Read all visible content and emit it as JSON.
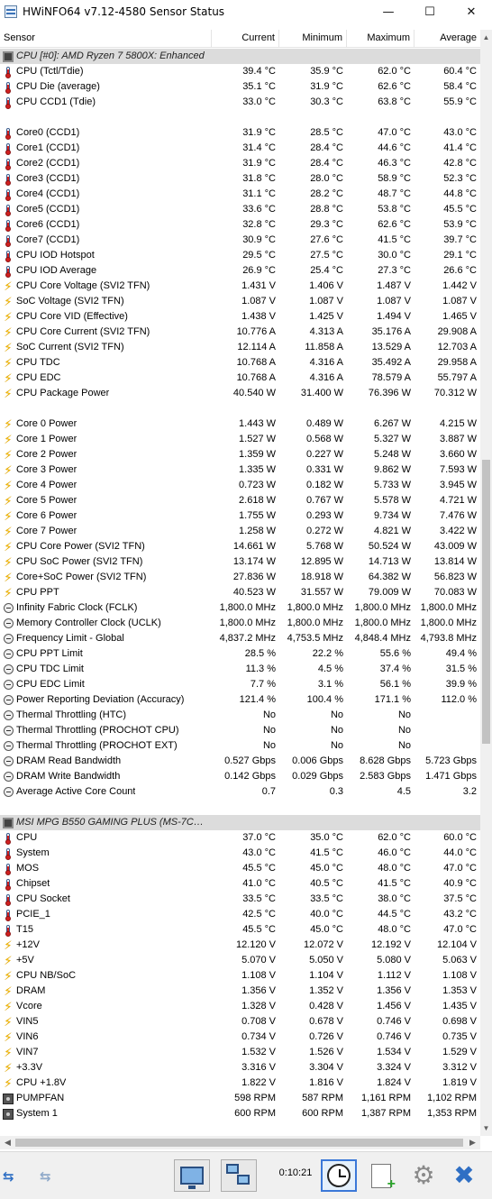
{
  "window": {
    "title": "HWiNFO64 v7.12-4580 Sensor Status",
    "minimize": "—",
    "maximize": "☐",
    "close": "✕"
  },
  "columns": {
    "sensor": "Sensor",
    "current": "Current",
    "minimum": "Minimum",
    "maximum": "Maximum",
    "average": "Average"
  },
  "rows": [
    {
      "type": "group",
      "icon": "chip",
      "name": "CPU [#0]: AMD Ryzen 7 5800X: Enhanced",
      "cur": "",
      "min": "",
      "max": "",
      "avg": ""
    },
    {
      "icon": "temp",
      "name": "CPU (Tctl/Tdie)",
      "cur": "39.4 °C",
      "min": "35.9 °C",
      "max": "62.0 °C",
      "avg": "60.4 °C"
    },
    {
      "icon": "temp",
      "name": "CPU Die (average)",
      "cur": "35.1 °C",
      "min": "31.9 °C",
      "max": "62.6 °C",
      "avg": "58.4 °C"
    },
    {
      "icon": "temp",
      "name": "CPU CCD1 (Tdie)",
      "cur": "33.0 °C",
      "min": "30.3 °C",
      "max": "63.8 °C",
      "avg": "55.9 °C"
    },
    {
      "type": "blank"
    },
    {
      "icon": "temp",
      "name": "Core0 (CCD1)",
      "cur": "31.9 °C",
      "min": "28.5 °C",
      "max": "47.0 °C",
      "avg": "43.0 °C"
    },
    {
      "icon": "temp",
      "name": "Core1 (CCD1)",
      "cur": "31.4 °C",
      "min": "28.4 °C",
      "max": "44.6 °C",
      "avg": "41.4 °C"
    },
    {
      "icon": "temp",
      "name": "Core2 (CCD1)",
      "cur": "31.9 °C",
      "min": "28.4 °C",
      "max": "46.3 °C",
      "avg": "42.8 °C"
    },
    {
      "icon": "temp",
      "name": "Core3 (CCD1)",
      "cur": "31.8 °C",
      "min": "28.0 °C",
      "max": "58.9 °C",
      "avg": "52.3 °C"
    },
    {
      "icon": "temp",
      "name": "Core4 (CCD1)",
      "cur": "31.1 °C",
      "min": "28.2 °C",
      "max": "48.7 °C",
      "avg": "44.8 °C"
    },
    {
      "icon": "temp",
      "name": "Core5 (CCD1)",
      "cur": "33.6 °C",
      "min": "28.8 °C",
      "max": "53.8 °C",
      "avg": "45.5 °C"
    },
    {
      "icon": "temp",
      "name": "Core6 (CCD1)",
      "cur": "32.8 °C",
      "min": "29.3 °C",
      "max": "62.6 °C",
      "avg": "53.9 °C"
    },
    {
      "icon": "temp",
      "name": "Core7 (CCD1)",
      "cur": "30.9 °C",
      "min": "27.6 °C",
      "max": "41.5 °C",
      "avg": "39.7 °C"
    },
    {
      "icon": "temp",
      "name": "CPU IOD Hotspot",
      "cur": "29.5 °C",
      "min": "27.5 °C",
      "max": "30.0 °C",
      "avg": "29.1 °C"
    },
    {
      "icon": "temp",
      "name": "CPU IOD Average",
      "cur": "26.9 °C",
      "min": "25.4 °C",
      "max": "27.3 °C",
      "avg": "26.6 °C"
    },
    {
      "icon": "bolt",
      "name": "CPU Core Voltage (SVI2 TFN)",
      "cur": "1.431 V",
      "min": "1.406 V",
      "max": "1.487 V",
      "avg": "1.442 V"
    },
    {
      "icon": "bolt",
      "name": "SoC Voltage (SVI2 TFN)",
      "cur": "1.087 V",
      "min": "1.087 V",
      "max": "1.087 V",
      "avg": "1.087 V"
    },
    {
      "icon": "bolt",
      "name": "CPU Core VID (Effective)",
      "cur": "1.438 V",
      "min": "1.425 V",
      "max": "1.494 V",
      "avg": "1.465 V"
    },
    {
      "icon": "bolt",
      "name": "CPU Core Current (SVI2 TFN)",
      "cur": "10.776 A",
      "min": "4.313 A",
      "max": "35.176 A",
      "avg": "29.908 A"
    },
    {
      "icon": "bolt",
      "name": "SoC Current (SVI2 TFN)",
      "cur": "12.114 A",
      "min": "11.858 A",
      "max": "13.529 A",
      "avg": "12.703 A"
    },
    {
      "icon": "bolt",
      "name": "CPU TDC",
      "cur": "10.768 A",
      "min": "4.316 A",
      "max": "35.492 A",
      "avg": "29.958 A"
    },
    {
      "icon": "bolt",
      "name": "CPU EDC",
      "cur": "10.768 A",
      "min": "4.316 A",
      "max": "78.579 A",
      "avg": "55.797 A"
    },
    {
      "icon": "bolt",
      "name": "CPU Package Power",
      "cur": "40.540 W",
      "min": "31.400 W",
      "max": "76.396 W",
      "avg": "70.312 W"
    },
    {
      "type": "blank"
    },
    {
      "icon": "bolt",
      "name": "Core 0 Power",
      "cur": "1.443 W",
      "min": "0.489 W",
      "max": "6.267 W",
      "avg": "4.215 W"
    },
    {
      "icon": "bolt",
      "name": "Core 1 Power",
      "cur": "1.527 W",
      "min": "0.568 W",
      "max": "5.327 W",
      "avg": "3.887 W"
    },
    {
      "icon": "bolt",
      "name": "Core 2 Power",
      "cur": "1.359 W",
      "min": "0.227 W",
      "max": "5.248 W",
      "avg": "3.660 W"
    },
    {
      "icon": "bolt",
      "name": "Core 3 Power",
      "cur": "1.335 W",
      "min": "0.331 W",
      "max": "9.862 W",
      "avg": "7.593 W"
    },
    {
      "icon": "bolt",
      "name": "Core 4 Power",
      "cur": "0.723 W",
      "min": "0.182 W",
      "max": "5.733 W",
      "avg": "3.945 W"
    },
    {
      "icon": "bolt",
      "name": "Core 5 Power",
      "cur": "2.618 W",
      "min": "0.767 W",
      "max": "5.578 W",
      "avg": "4.721 W"
    },
    {
      "icon": "bolt",
      "name": "Core 6 Power",
      "cur": "1.755 W",
      "min": "0.293 W",
      "max": "9.734 W",
      "avg": "7.476 W"
    },
    {
      "icon": "bolt",
      "name": "Core 7 Power",
      "cur": "1.258 W",
      "min": "0.272 W",
      "max": "4.821 W",
      "avg": "3.422 W"
    },
    {
      "icon": "bolt",
      "name": "CPU Core Power (SVI2 TFN)",
      "cur": "14.661 W",
      "min": "5.768 W",
      "max": "50.524 W",
      "avg": "43.009 W"
    },
    {
      "icon": "bolt",
      "name": "CPU SoC Power (SVI2 TFN)",
      "cur": "13.174 W",
      "min": "12.895 W",
      "max": "14.713 W",
      "avg": "13.814 W"
    },
    {
      "icon": "bolt",
      "name": "Core+SoC Power (SVI2 TFN)",
      "cur": "27.836 W",
      "min": "18.918 W",
      "max": "64.382 W",
      "avg": "56.823 W"
    },
    {
      "icon": "bolt",
      "name": "CPU PPT",
      "cur": "40.523 W",
      "min": "31.557 W",
      "max": "79.009 W",
      "avg": "70.083 W"
    },
    {
      "icon": "clock",
      "name": "Infinity Fabric Clock (FCLK)",
      "cur": "1,800.0 MHz",
      "min": "1,800.0 MHz",
      "max": "1,800.0 MHz",
      "avg": "1,800.0 MHz"
    },
    {
      "icon": "clock",
      "name": "Memory Controller Clock (UCLK)",
      "cur": "1,800.0 MHz",
      "min": "1,800.0 MHz",
      "max": "1,800.0 MHz",
      "avg": "1,800.0 MHz"
    },
    {
      "icon": "clock",
      "name": "Frequency Limit - Global",
      "cur": "4,837.2 MHz",
      "min": "4,753.5 MHz",
      "max": "4,848.4 MHz",
      "avg": "4,793.8 MHz"
    },
    {
      "icon": "clock",
      "name": "CPU PPT Limit",
      "cur": "28.5 %",
      "min": "22.2 %",
      "max": "55.6 %",
      "avg": "49.4 %"
    },
    {
      "icon": "clock",
      "name": "CPU TDC Limit",
      "cur": "11.3 %",
      "min": "4.5 %",
      "max": "37.4 %",
      "avg": "31.5 %"
    },
    {
      "icon": "clock",
      "name": "CPU EDC Limit",
      "cur": "7.7 %",
      "min": "3.1 %",
      "max": "56.1 %",
      "avg": "39.9 %"
    },
    {
      "icon": "clock",
      "name": "Power Reporting Deviation (Accuracy)",
      "cur": "121.4 %",
      "min": "100.4 %",
      "max": "171.1 %",
      "avg": "112.0 %"
    },
    {
      "icon": "clock",
      "name": "Thermal Throttling (HTC)",
      "cur": "No",
      "min": "No",
      "max": "No",
      "avg": ""
    },
    {
      "icon": "clock",
      "name": "Thermal Throttling (PROCHOT CPU)",
      "cur": "No",
      "min": "No",
      "max": "No",
      "avg": ""
    },
    {
      "icon": "clock",
      "name": "Thermal Throttling (PROCHOT EXT)",
      "cur": "No",
      "min": "No",
      "max": "No",
      "avg": ""
    },
    {
      "icon": "clock",
      "name": "DRAM Read Bandwidth",
      "cur": "0.527 Gbps",
      "min": "0.006 Gbps",
      "max": "8.628 Gbps",
      "avg": "5.723 Gbps"
    },
    {
      "icon": "clock",
      "name": "DRAM Write Bandwidth",
      "cur": "0.142 Gbps",
      "min": "0.029 Gbps",
      "max": "2.583 Gbps",
      "avg": "1.471 Gbps"
    },
    {
      "icon": "clock",
      "name": "Average Active Core Count",
      "cur": "0.7",
      "min": "0.3",
      "max": "4.5",
      "avg": "3.2"
    },
    {
      "type": "blank"
    },
    {
      "type": "group",
      "icon": "chip",
      "name": "MSI MPG B550 GAMING PLUS (MS-7C56) (...",
      "cur": "",
      "min": "",
      "max": "",
      "avg": ""
    },
    {
      "icon": "temp",
      "name": "CPU",
      "cur": "37.0 °C",
      "min": "35.0 °C",
      "max": "62.0 °C",
      "avg": "60.0 °C"
    },
    {
      "icon": "temp",
      "name": "System",
      "cur": "43.0 °C",
      "min": "41.5 °C",
      "max": "46.0 °C",
      "avg": "44.0 °C"
    },
    {
      "icon": "temp",
      "name": "MOS",
      "cur": "45.5 °C",
      "min": "45.0 °C",
      "max": "48.0 °C",
      "avg": "47.0 °C"
    },
    {
      "icon": "temp",
      "name": "Chipset",
      "cur": "41.0 °C",
      "min": "40.5 °C",
      "max": "41.5 °C",
      "avg": "40.9 °C"
    },
    {
      "icon": "temp",
      "name": "CPU Socket",
      "cur": "33.5 °C",
      "min": "33.5 °C",
      "max": "38.0 °C",
      "avg": "37.5 °C"
    },
    {
      "icon": "temp",
      "name": "PCIE_1",
      "cur": "42.5 °C",
      "min": "40.0 °C",
      "max": "44.5 °C",
      "avg": "43.2 °C"
    },
    {
      "icon": "temp",
      "name": "T15",
      "cur": "45.5 °C",
      "min": "45.0 °C",
      "max": "48.0 °C",
      "avg": "47.0 °C"
    },
    {
      "icon": "bolt",
      "name": "+12V",
      "cur": "12.120 V",
      "min": "12.072 V",
      "max": "12.192 V",
      "avg": "12.104 V"
    },
    {
      "icon": "bolt",
      "name": "+5V",
      "cur": "5.070 V",
      "min": "5.050 V",
      "max": "5.080 V",
      "avg": "5.063 V"
    },
    {
      "icon": "bolt",
      "name": "CPU NB/SoC",
      "cur": "1.108 V",
      "min": "1.104 V",
      "max": "1.112 V",
      "avg": "1.108 V"
    },
    {
      "icon": "bolt",
      "name": "DRAM",
      "cur": "1.356 V",
      "min": "1.352 V",
      "max": "1.356 V",
      "avg": "1.353 V"
    },
    {
      "icon": "bolt",
      "name": "Vcore",
      "cur": "1.328 V",
      "min": "0.428 V",
      "max": "1.456 V",
      "avg": "1.435 V"
    },
    {
      "icon": "bolt",
      "name": "VIN5",
      "cur": "0.708 V",
      "min": "0.678 V",
      "max": "0.746 V",
      "avg": "0.698 V"
    },
    {
      "icon": "bolt",
      "name": "VIN6",
      "cur": "0.734 V",
      "min": "0.726 V",
      "max": "0.746 V",
      "avg": "0.735 V"
    },
    {
      "icon": "bolt",
      "name": "VIN7",
      "cur": "1.532 V",
      "min": "1.526 V",
      "max": "1.534 V",
      "avg": "1.529 V"
    },
    {
      "icon": "bolt",
      "name": "+3.3V",
      "cur": "3.316 V",
      "min": "3.304 V",
      "max": "3.324 V",
      "avg": "3.312 V"
    },
    {
      "icon": "bolt",
      "name": "CPU +1.8V",
      "cur": "1.822 V",
      "min": "1.816 V",
      "max": "1.824 V",
      "avg": "1.819 V"
    },
    {
      "icon": "fan",
      "name": "PUMPFAN",
      "cur": "598 RPM",
      "min": "587 RPM",
      "max": "1,161 RPM",
      "avg": "1,102 RPM"
    },
    {
      "icon": "fan",
      "name": "System 1",
      "cur": "600 RPM",
      "min": "600 RPM",
      "max": "1,387 RPM",
      "avg": "1,353 RPM"
    }
  ],
  "toolbar": {
    "timer": "0:10:21"
  }
}
